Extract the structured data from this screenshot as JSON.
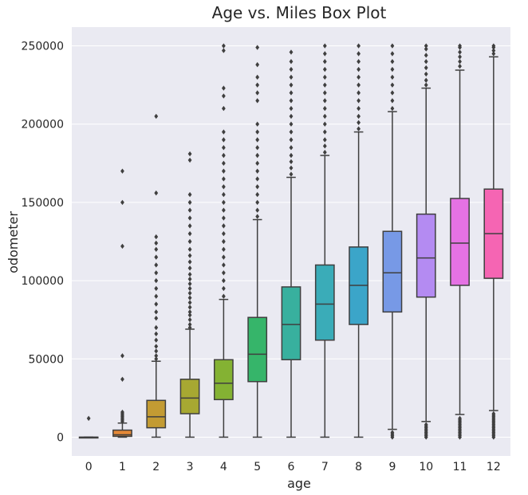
{
  "chart_data": {
    "type": "box",
    "title": "Age vs. Miles Box Plot",
    "xlabel": "age",
    "ylabel": "odometer",
    "categories": [
      "0",
      "1",
      "2",
      "3",
      "4",
      "5",
      "6",
      "7",
      "8",
      "9",
      "10",
      "11",
      "12"
    ],
    "yticks": [
      0,
      50000,
      100000,
      150000,
      200000,
      250000
    ],
    "ylim": [
      -12000,
      262000
    ],
    "grid": true,
    "background": "#eaeaf2",
    "colors": [
      "#f77189",
      "#e48837",
      "#c39b33",
      "#a7a832",
      "#84b233",
      "#36b56a",
      "#38b09e",
      "#3aacb8",
      "#3ba5c9",
      "#7799e6",
      "#b48bf2",
      "#e572e4",
      "#f565b3"
    ],
    "boxes": [
      {
        "cat": "0",
        "q1": 0,
        "median": 0,
        "q3": 0,
        "whisker_low": 0,
        "whisker_high": 0,
        "outliers": [
          12000
        ]
      },
      {
        "cat": "1",
        "q1": 500,
        "median": 1500,
        "q3": 4500,
        "whisker_low": 0,
        "whisker_high": 9000,
        "outliers": [
          10000,
          11000,
          12000,
          13000,
          14000,
          15000,
          16000,
          37000,
          52000,
          122000,
          150000,
          170000
        ]
      },
      {
        "cat": "2",
        "q1": 6000,
        "median": 13000,
        "q3": 23500,
        "whisker_low": 0,
        "whisker_high": 48500,
        "outliers": [
          50000,
          52000,
          55000,
          58000,
          62000,
          66000,
          70000,
          76000,
          80000,
          85000,
          90000,
          95000,
          100000,
          105000,
          110000,
          115000,
          120000,
          124000,
          128000,
          156000,
          205000
        ]
      },
      {
        "cat": "3",
        "q1": 15000,
        "median": 25000,
        "q3": 37000,
        "whisker_low": 0,
        "whisker_high": 69000,
        "outliers": [
          70000,
          72000,
          75000,
          78000,
          80000,
          83000,
          86000,
          89000,
          92000,
          95000,
          98000,
          101000,
          104000,
          108000,
          112000,
          116000,
          120000,
          125000,
          130000,
          135000,
          140000,
          145000,
          150000,
          155000,
          177000,
          181000
        ]
      },
      {
        "cat": "4",
        "q1": 24000,
        "median": 34500,
        "q3": 49500,
        "whisker_low": 0,
        "whisker_high": 88000,
        "outliers": [
          90000,
          95000,
          100000,
          105000,
          110000,
          115000,
          120000,
          125000,
          130000,
          135000,
          140000,
          145000,
          150000,
          155000,
          160000,
          165000,
          170000,
          175000,
          180000,
          185000,
          190000,
          195000,
          210000,
          218000,
          223000,
          247000,
          250000
        ]
      },
      {
        "cat": "5",
        "q1": 35500,
        "median": 53000,
        "q3": 76500,
        "whisker_low": 0,
        "whisker_high": 139000,
        "outliers": [
          141000,
          145000,
          150000,
          155000,
          160000,
          165000,
          170000,
          175000,
          180000,
          185000,
          190000,
          195000,
          200000,
          215000,
          220000,
          225000,
          230000,
          238000,
          249000
        ]
      },
      {
        "cat": "6",
        "q1": 49500,
        "median": 72000,
        "q3": 96000,
        "whisker_low": 0,
        "whisker_high": 166000,
        "outliers": [
          168000,
          172000,
          176000,
          180000,
          185000,
          190000,
          195000,
          200000,
          205000,
          210000,
          215000,
          220000,
          225000,
          230000,
          235000,
          240000,
          246000
        ]
      },
      {
        "cat": "7",
        "q1": 62000,
        "median": 85000,
        "q3": 110000,
        "whisker_low": 0,
        "whisker_high": 180000,
        "outliers": [
          182000,
          186000,
          190000,
          195000,
          200000,
          205000,
          210000,
          215000,
          220000,
          225000,
          230000,
          235000,
          240000,
          245000,
          250000
        ]
      },
      {
        "cat": "8",
        "q1": 72000,
        "median": 97000,
        "q3": 121500,
        "whisker_low": 0,
        "whisker_high": 195000,
        "outliers": [
          197000,
          201000,
          205000,
          210000,
          215000,
          220000,
          225000,
          230000,
          235000,
          240000,
          245000,
          250000
        ]
      },
      {
        "cat": "9",
        "q1": 80000,
        "median": 105000,
        "q3": 131500,
        "whisker_low": 5000,
        "whisker_high": 208000,
        "outliers": [
          0,
          1000,
          2000,
          3000,
          210000,
          215000,
          220000,
          225000,
          230000,
          235000,
          240000,
          245000,
          250000
        ]
      },
      {
        "cat": "10",
        "q1": 89500,
        "median": 114500,
        "q3": 142500,
        "whisker_low": 10000,
        "whisker_high": 223000,
        "outliers": [
          0,
          1000,
          2000,
          3000,
          4000,
          5000,
          6000,
          7000,
          8000,
          225000,
          228000,
          232000,
          236000,
          240000,
          244000,
          248000,
          250000
        ]
      },
      {
        "cat": "11",
        "q1": 97000,
        "median": 124000,
        "q3": 152500,
        "whisker_low": 14500,
        "whisker_high": 234500,
        "outliers": [
          0,
          1000,
          2000,
          3000,
          4000,
          5000,
          6000,
          7000,
          8000,
          9000,
          10000,
          11000,
          12000,
          237000,
          240000,
          243000,
          246000,
          249000,
          250000
        ]
      },
      {
        "cat": "12",
        "q1": 101500,
        "median": 130000,
        "q3": 158500,
        "whisker_low": 17000,
        "whisker_high": 243000,
        "outliers": [
          0,
          1000,
          2000,
          3000,
          4000,
          5000,
          6000,
          7000,
          8000,
          9000,
          10000,
          11000,
          12000,
          13000,
          14000,
          15000,
          245000,
          247000,
          249000,
          250000
        ]
      }
    ]
  }
}
